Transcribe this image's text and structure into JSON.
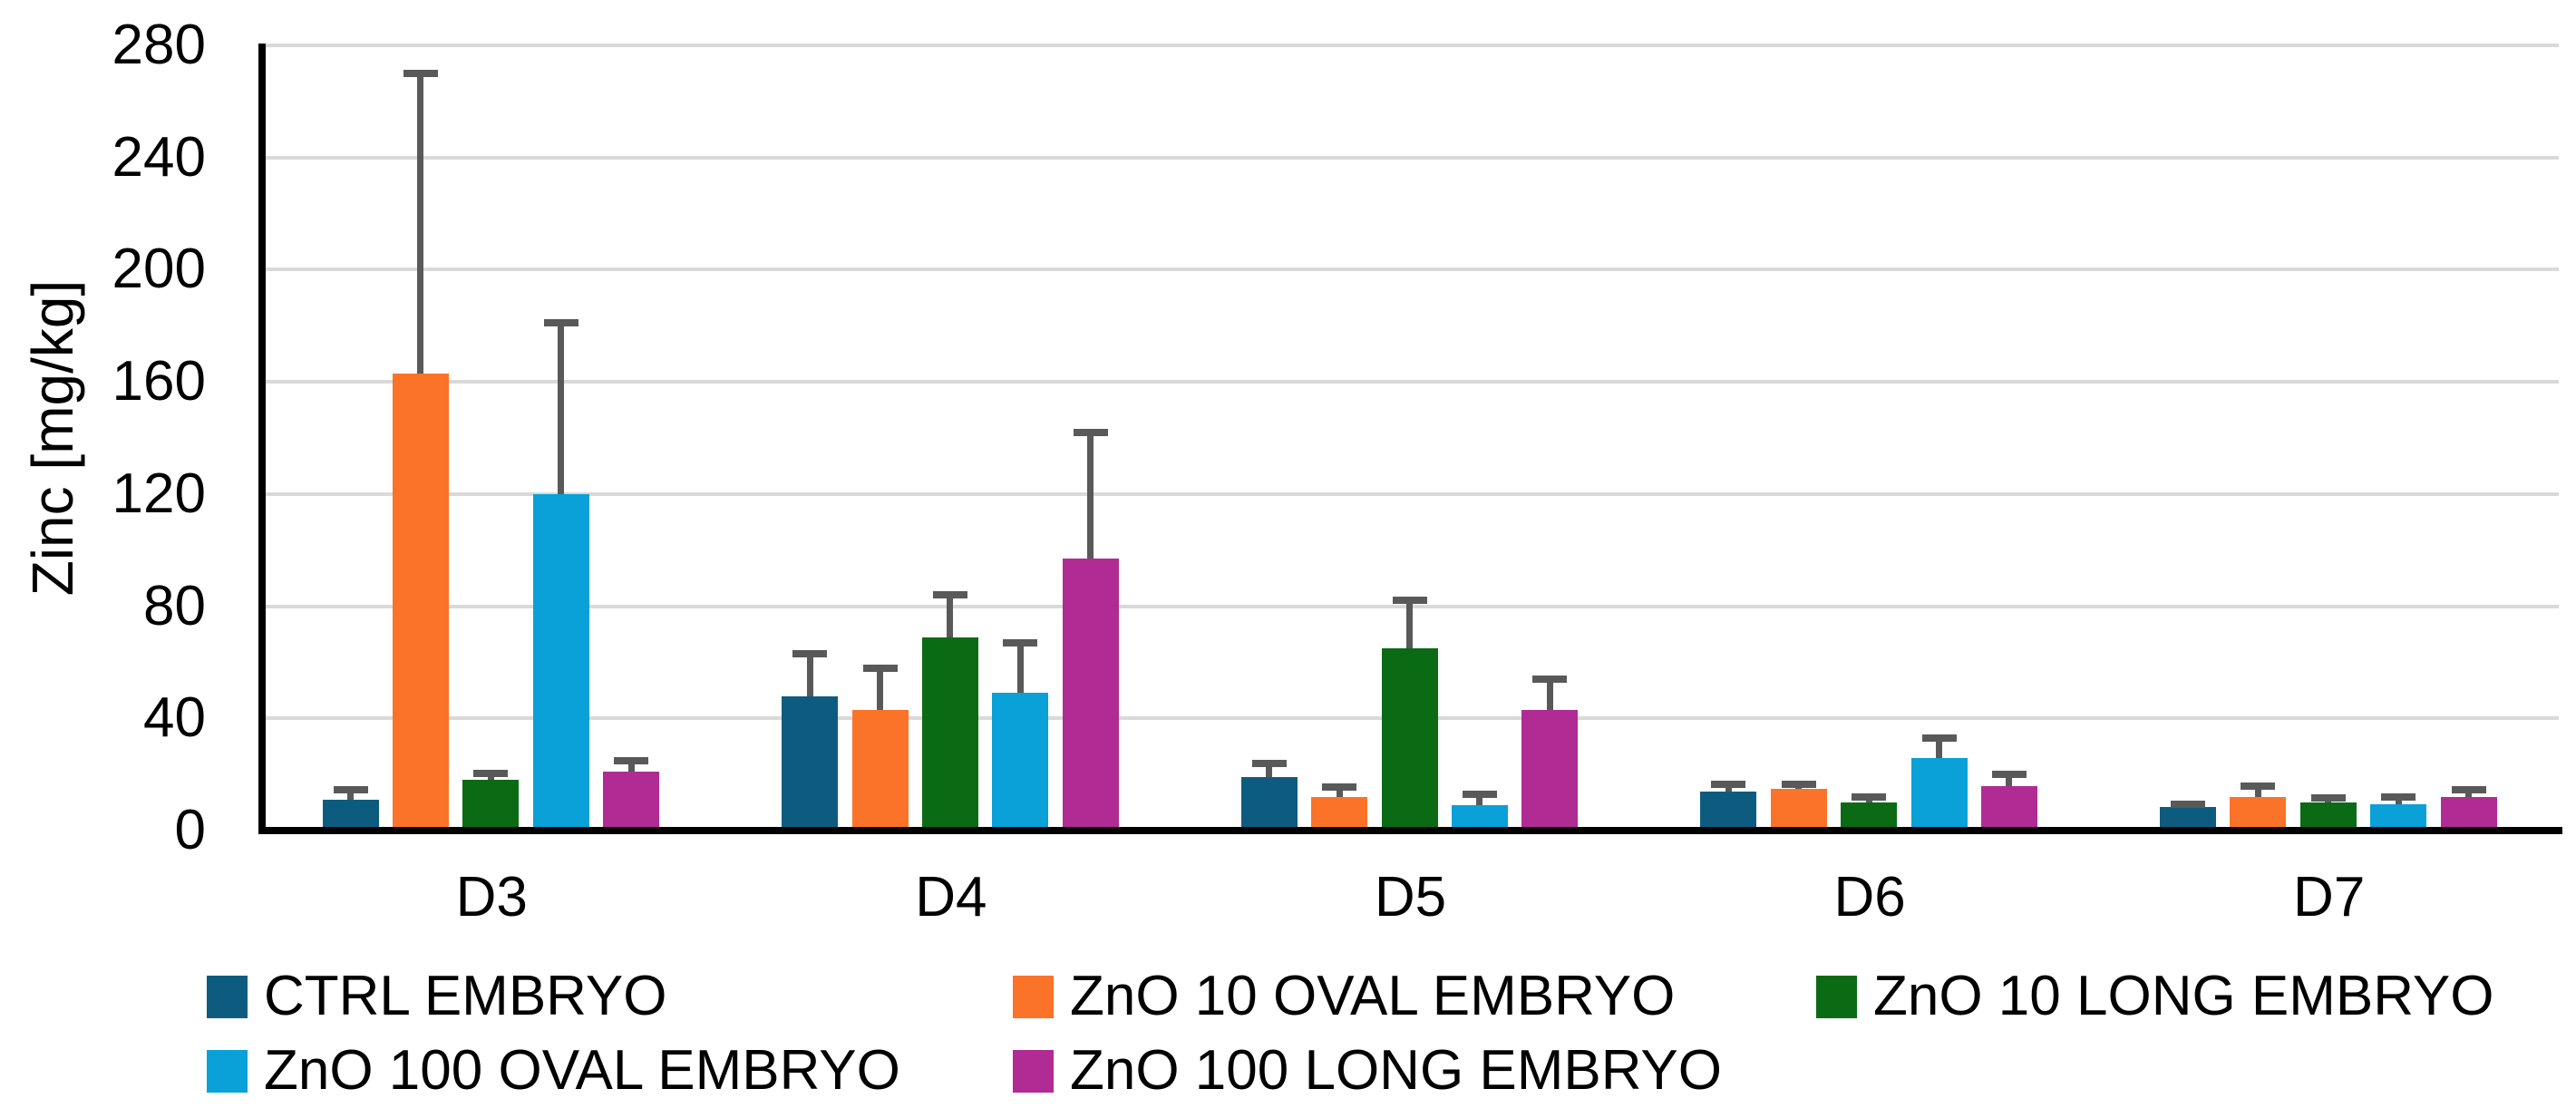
{
  "figure": {
    "background": "#FFFFFF",
    "axis_color": "#000000",
    "gridline_color": "#D9D9D9",
    "error_bar_color": "#595959"
  },
  "chart_data": {
    "type": "bar",
    "title": "",
    "xlabel": "",
    "ylabel": "Zinc [mg/kg]",
    "categories": [
      "D3",
      "D4",
      "D5",
      "D6",
      "D7"
    ],
    "ylim": [
      0,
      280
    ],
    "y_ticks": [
      0,
      40,
      80,
      120,
      160,
      200,
      240,
      280
    ],
    "grid": "horizontal",
    "legend_position": "bottom",
    "error_bars": "plus-direction",
    "series": [
      {
        "name": "CTRL EMBRYO",
        "color": "#0D5C7F",
        "values": [
          11,
          48,
          19,
          14,
          8.5
        ],
        "error_plus": [
          3.5,
          15,
          5,
          2.5,
          1
        ]
      },
      {
        "name": "ZnO 10 OVAL EMBRYO",
        "color": "#FB7329",
        "values": [
          163,
          43,
          12,
          15,
          12
        ],
        "error_plus": [
          107,
          15,
          3.5,
          1.5,
          4
        ]
      },
      {
        "name": "ZnO 10 LONG EMBRYO",
        "color": "#0A6B14",
        "values": [
          18,
          69,
          65,
          10,
          10
        ],
        "error_plus": [
          2.5,
          15,
          17,
          2,
          1.5
        ]
      },
      {
        "name": "ZnO 100 OVAL EMBRYO",
        "color": "#09A1D7",
        "values": [
          120,
          49,
          9,
          26,
          9.5
        ],
        "error_plus": [
          61,
          18,
          4,
          7,
          2.5
        ]
      },
      {
        "name": "ZnO 100 LONG EMBRYO",
        "color": "#B02B94",
        "values": [
          21,
          97,
          43,
          16,
          12
        ],
        "error_plus": [
          4,
          45,
          11,
          4,
          2.5
        ]
      }
    ]
  }
}
